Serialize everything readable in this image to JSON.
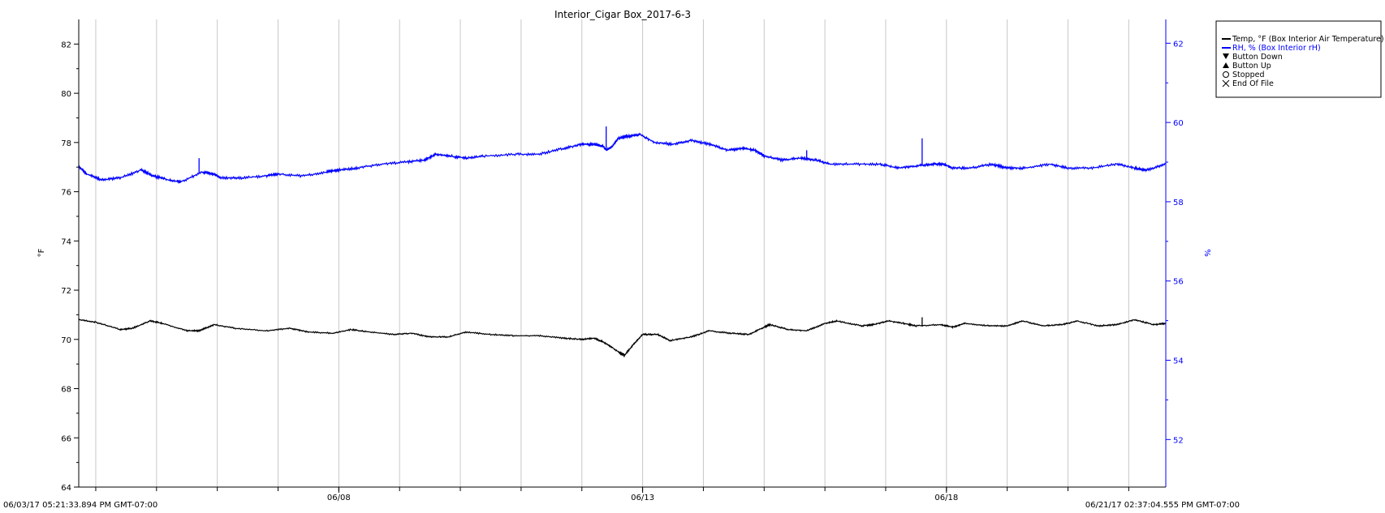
{
  "chart_data": {
    "type": "line",
    "title": "Interior_Cigar Box_2017-6-3",
    "left_axis": {
      "label": "°F",
      "ylim": [
        64,
        83
      ],
      "ticks": [
        64,
        66,
        68,
        70,
        72,
        74,
        76,
        78,
        80,
        82
      ],
      "color": "#000000"
    },
    "right_axis": {
      "label": "%",
      "ylim": [
        50.8,
        62.6
      ],
      "ticks": [
        52,
        54,
        56,
        58,
        60,
        62
      ],
      "color": "#0000ff"
    },
    "x_axis": {
      "start_label": "06/03/17 05:21:33.894 PM GMT-07:00",
      "end_label": "06/21/17 02:37:04.555 PM GMT-07:00",
      "start_day": 3.72,
      "end_day": 21.61,
      "major_ticks": [
        {
          "day": 8,
          "label": "06/08"
        },
        {
          "day": 13,
          "label": "06/13"
        },
        {
          "day": 18,
          "label": "06/18"
        }
      ],
      "gridlines_days": [
        4,
        5,
        6,
        7,
        8,
        9,
        10,
        11,
        12,
        13,
        14,
        15,
        16,
        17,
        18,
        19,
        20,
        21
      ]
    },
    "grid": "vertical",
    "legend_position": "top-right",
    "series": [
      {
        "name": "Temp, °F (Box Interior Air Temperature)",
        "axis": "left",
        "color": "#000000",
        "points": [
          [
            3.72,
            70.8
          ],
          [
            4.0,
            70.7
          ],
          [
            4.4,
            70.4
          ],
          [
            4.6,
            70.45
          ],
          [
            4.9,
            70.75
          ],
          [
            5.1,
            70.65
          ],
          [
            5.5,
            70.35
          ],
          [
            5.7,
            70.35
          ],
          [
            5.95,
            70.6
          ],
          [
            6.3,
            70.45
          ],
          [
            6.8,
            70.35
          ],
          [
            7.2,
            70.45
          ],
          [
            7.5,
            70.3
          ],
          [
            7.9,
            70.25
          ],
          [
            8.2,
            70.4
          ],
          [
            8.5,
            70.3
          ],
          [
            8.9,
            70.2
          ],
          [
            9.2,
            70.25
          ],
          [
            9.5,
            70.1
          ],
          [
            9.8,
            70.1
          ],
          [
            10.1,
            70.3
          ],
          [
            10.5,
            70.2
          ],
          [
            10.9,
            70.15
          ],
          [
            11.3,
            70.15
          ],
          [
            11.7,
            70.05
          ],
          [
            12.0,
            70.0
          ],
          [
            12.2,
            70.05
          ],
          [
            12.35,
            69.9
          ],
          [
            12.6,
            69.5
          ],
          [
            12.7,
            69.35
          ],
          [
            12.85,
            69.8
          ],
          [
            13.0,
            70.2
          ],
          [
            13.25,
            70.2
          ],
          [
            13.45,
            69.95
          ],
          [
            13.8,
            70.1
          ],
          [
            14.1,
            70.35
          ],
          [
            14.45,
            70.25
          ],
          [
            14.75,
            70.2
          ],
          [
            15.0,
            70.5
          ],
          [
            15.1,
            70.6
          ],
          [
            15.4,
            70.4
          ],
          [
            15.7,
            70.35
          ],
          [
            16.0,
            70.65
          ],
          [
            16.2,
            70.75
          ],
          [
            16.6,
            70.55
          ],
          [
            16.8,
            70.6
          ],
          [
            17.05,
            70.75
          ],
          [
            17.3,
            70.65
          ],
          [
            17.5,
            70.55
          ],
          [
            17.9,
            70.6
          ],
          [
            18.1,
            70.5
          ],
          [
            18.3,
            70.65
          ],
          [
            18.7,
            70.55
          ],
          [
            19.0,
            70.55
          ],
          [
            19.25,
            70.75
          ],
          [
            19.6,
            70.55
          ],
          [
            19.9,
            70.6
          ],
          [
            20.15,
            70.75
          ],
          [
            20.5,
            70.55
          ],
          [
            20.8,
            70.6
          ],
          [
            21.1,
            70.8
          ],
          [
            21.4,
            70.6
          ],
          [
            21.61,
            70.65
          ]
        ]
      },
      {
        "name": "RH, % (Box Interior rH)",
        "axis": "right",
        "color": "#0000ff",
        "points": [
          [
            3.72,
            58.9
          ],
          [
            3.85,
            58.7
          ],
          [
            4.1,
            58.55
          ],
          [
            4.4,
            58.6
          ],
          [
            4.75,
            58.8
          ],
          [
            4.95,
            58.65
          ],
          [
            5.2,
            58.55
          ],
          [
            5.4,
            58.5
          ],
          [
            5.75,
            58.75
          ],
          [
            5.95,
            58.7
          ],
          [
            6.05,
            58.6
          ],
          [
            6.4,
            58.6
          ],
          [
            6.8,
            58.65
          ],
          [
            7.0,
            58.7
          ],
          [
            7.4,
            58.65
          ],
          [
            7.8,
            58.75
          ],
          [
            8.0,
            58.8
          ],
          [
            8.3,
            58.85
          ],
          [
            8.7,
            58.95
          ],
          [
            9.1,
            59.0
          ],
          [
            9.4,
            59.05
          ],
          [
            9.6,
            59.2
          ],
          [
            9.85,
            59.15
          ],
          [
            10.1,
            59.1
          ],
          [
            10.4,
            59.15
          ],
          [
            10.9,
            59.2
          ],
          [
            11.3,
            59.2
          ],
          [
            11.7,
            59.35
          ],
          [
            12.0,
            59.45
          ],
          [
            12.2,
            59.45
          ],
          [
            12.35,
            59.4
          ],
          [
            12.4,
            59.3
          ],
          [
            12.5,
            59.4
          ],
          [
            12.6,
            59.6
          ],
          [
            12.75,
            59.65
          ],
          [
            12.95,
            59.7
          ],
          [
            13.2,
            59.5
          ],
          [
            13.5,
            59.45
          ],
          [
            13.8,
            59.55
          ],
          [
            14.1,
            59.45
          ],
          [
            14.4,
            59.3
          ],
          [
            14.65,
            59.35
          ],
          [
            14.85,
            59.3
          ],
          [
            15.0,
            59.15
          ],
          [
            15.3,
            59.05
          ],
          [
            15.6,
            59.1
          ],
          [
            15.85,
            59.05
          ],
          [
            16.1,
            58.95
          ],
          [
            16.5,
            58.95
          ],
          [
            16.9,
            58.95
          ],
          [
            17.2,
            58.85
          ],
          [
            17.5,
            58.9
          ],
          [
            17.75,
            58.95
          ],
          [
            17.95,
            58.95
          ],
          [
            18.1,
            58.85
          ],
          [
            18.4,
            58.85
          ],
          [
            18.75,
            58.95
          ],
          [
            19.0,
            58.85
          ],
          [
            19.3,
            58.85
          ],
          [
            19.7,
            58.95
          ],
          [
            20.0,
            58.85
          ],
          [
            20.4,
            58.85
          ],
          [
            20.8,
            58.95
          ],
          [
            21.1,
            58.85
          ],
          [
            21.3,
            58.8
          ],
          [
            21.61,
            58.95
          ]
        ]
      }
    ],
    "spikes": [
      {
        "series": 0,
        "day": 17.6,
        "value": 70.9
      },
      {
        "series": 1,
        "day": 5.7,
        "value": 59.1
      },
      {
        "series": 1,
        "day": 12.4,
        "value": 59.9
      },
      {
        "series": 1,
        "day": 15.7,
        "value": 59.3
      },
      {
        "series": 1,
        "day": 17.6,
        "value": 59.6
      }
    ],
    "legend_extra": [
      "Button Down",
      "Button Up",
      "Stopped",
      "End Of File"
    ]
  }
}
